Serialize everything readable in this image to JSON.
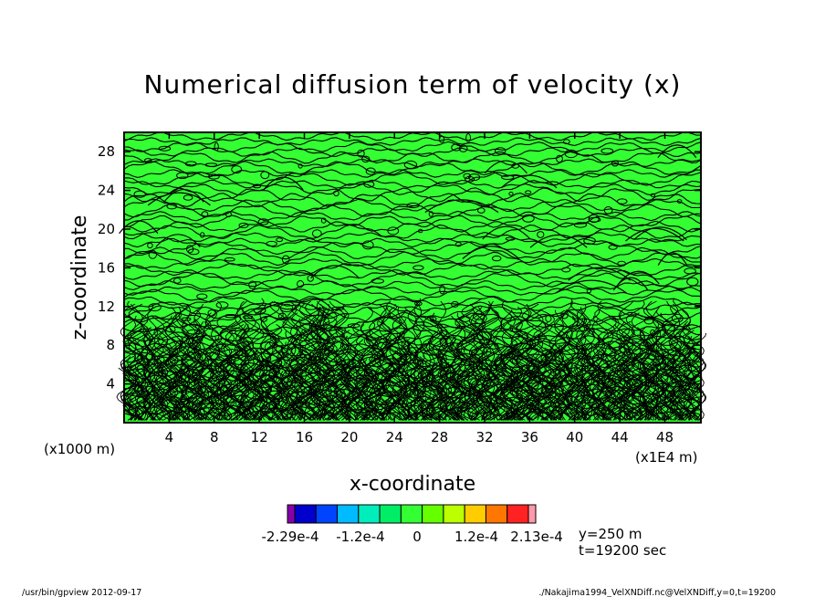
{
  "chart_data": {
    "type": "heatmap",
    "title": "Numerical diffusion term of velocity (x)",
    "xlabel": "x-coordinate",
    "ylabel": "z-coordinate",
    "x_unit_label": "(x1E4 m)",
    "y_unit_label": "(x1000 m)",
    "xlim": [
      0,
      51.2
    ],
    "ylim": [
      0,
      30
    ],
    "x_ticks": [
      4,
      8,
      12,
      16,
      20,
      24,
      28,
      32,
      36,
      40,
      44,
      48
    ],
    "x_tick_labels": [
      "4",
      "8",
      "12",
      "16",
      "20",
      "24",
      "28",
      "32",
      "36",
      "40",
      "44",
      "48"
    ],
    "y_ticks": [
      4,
      8,
      12,
      16,
      20,
      24,
      28
    ],
    "y_tick_labels": [
      "4",
      "8",
      "12",
      "16",
      "20",
      "24",
      "28"
    ],
    "field_fill_color": "#33ff33",
    "contour_color": "#000000",
    "colorbar": {
      "colors": [
        "#8800aa",
        "#0000cc",
        "#0044ff",
        "#00bbff",
        "#00eebb",
        "#00ee66",
        "#33ff33",
        "#66ff00",
        "#bbff00",
        "#ffcc00",
        "#ff7700",
        "#ff2222",
        "#ff99aa"
      ],
      "tick_labels": [
        "-2.29e-4",
        "-1.2e-4",
        "0",
        "1.2e-4",
        "2.13e-4"
      ]
    },
    "annotations": [
      "y=250  m",
      "t=19200 sec"
    ]
  },
  "footer": {
    "left": "/usr/bin/gpview   2012-09-17",
    "right": "./Nakajima1994_VelXNDiff.nc@VelXNDiff,y=0,t=19200"
  }
}
